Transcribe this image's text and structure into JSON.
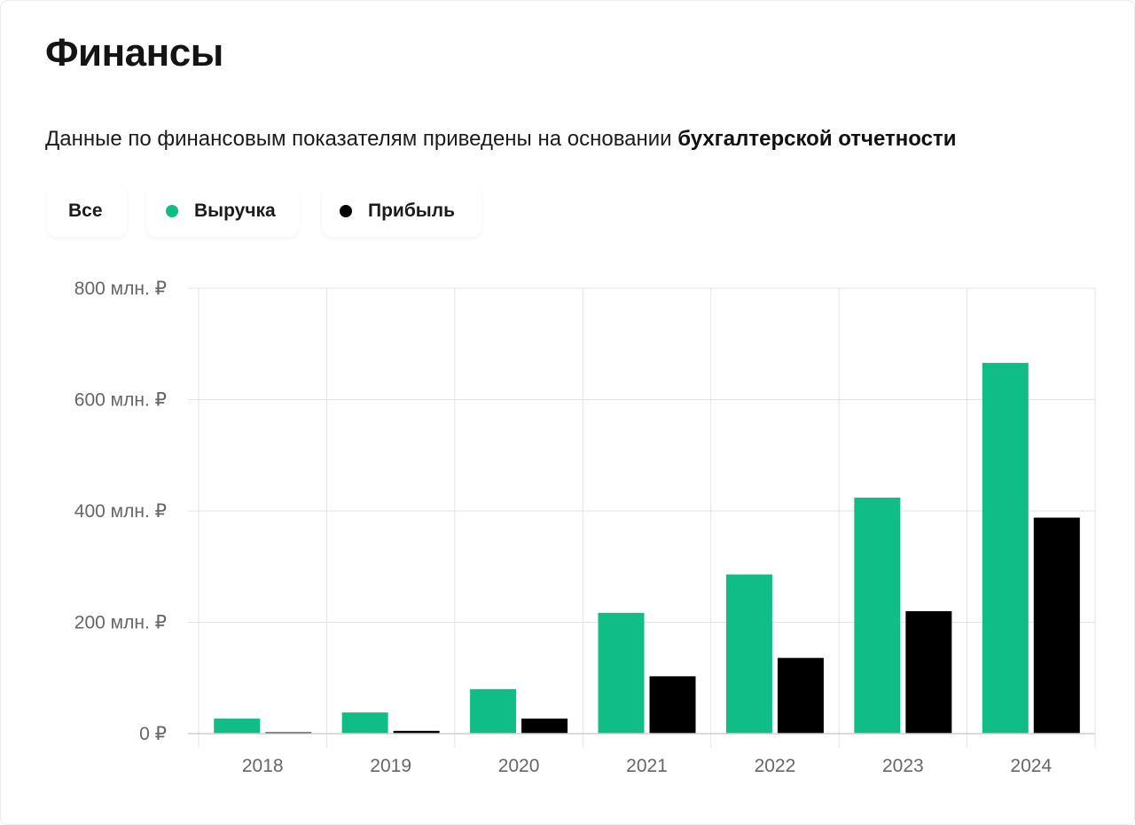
{
  "header": {
    "title": "Финансы",
    "subtitle_prefix": "Данные по финансовым показателям приведены на основании",
    "subtitle_link": "бухгалтерской отчетности"
  },
  "filters": {
    "all_label": "Все",
    "revenue_label": "Выручка",
    "profit_label": "Прибыль"
  },
  "colors": {
    "revenue": "#10bd87",
    "profit": "#000000",
    "grid": "#e3e3e3"
  },
  "chart_data": {
    "type": "bar",
    "categories": [
      "2018",
      "2019",
      "2020",
      "2021",
      "2022",
      "2023",
      "2024"
    ],
    "series": [
      {
        "name": "Выручка",
        "values": [
          27,
          38,
          80,
          217,
          286,
          424,
          666
        ]
      },
      {
        "name": "Прибыль",
        "values": [
          1,
          5,
          27,
          103,
          136,
          220,
          388
        ]
      }
    ],
    "ylim": [
      0,
      800
    ],
    "yticks": [
      {
        "value": 0,
        "label": "0 ₽"
      },
      {
        "value": 200,
        "label": "200 млн. ₽"
      },
      {
        "value": 400,
        "label": "400 млн. ₽"
      },
      {
        "value": 600,
        "label": "600 млн. ₽"
      },
      {
        "value": 800,
        "label": "800 млн. ₽"
      }
    ],
    "grid": true,
    "legend": "top-left"
  }
}
